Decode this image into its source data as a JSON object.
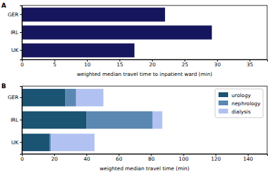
{
  "chart_data": [
    {
      "type": "bar",
      "title": "A",
      "orientation": "horizontal",
      "categories": [
        "GER",
        "IRL",
        "UK"
      ],
      "values": [
        22,
        29.2,
        17.3
      ],
      "color": "#16165e",
      "xlabel": "weighted median travel time to inpatient ward (min)",
      "xlim": [
        0,
        37.7
      ],
      "xticks": [
        0,
        5,
        10,
        15,
        20,
        25,
        30,
        35
      ]
    },
    {
      "type": "bar",
      "title": "B",
      "orientation": "horizontal",
      "stacked": true,
      "legend": "upper right",
      "categories": [
        "GER",
        "IRL",
        "UK"
      ],
      "series": [
        {
          "name": "urology",
          "color": "#1b5373",
          "values": [
            27,
            40,
            17
          ]
        },
        {
          "name": "nephrology",
          "color": "#5b87b3",
          "values": [
            6.5,
            41,
            1
          ]
        },
        {
          "name": "dialysis",
          "color": "#b1c2f2",
          "values": [
            17,
            6,
            27
          ]
        }
      ],
      "xlabel": "weighted median travel time (min)",
      "xlim": [
        0,
        152
      ],
      "xticks": [
        0,
        20,
        40,
        60,
        80,
        100,
        120,
        140
      ]
    }
  ]
}
